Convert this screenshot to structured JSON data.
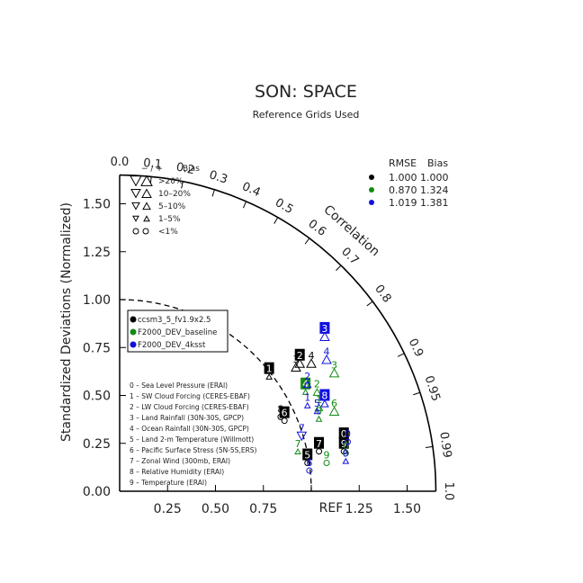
{
  "chart_data": {
    "type": "scatter",
    "title": "SON: SPACE",
    "subtitle": "Reference Grids Used",
    "ylabel": "Standardized Deviations (Normalized)",
    "correlation_label": "Correlation",
    "ref_label": "REF",
    "xlim": [
      0,
      1.65
    ],
    "ylim": [
      0,
      1.65
    ],
    "x_ticks": [
      "0.25",
      "0.50",
      "0.75",
      "1.25",
      "1.50"
    ],
    "x_tick_values": [
      0.25,
      0.5,
      0.75,
      1.25,
      1.5
    ],
    "y_ticks": [
      "0.00",
      "0.25",
      "0.50",
      "0.75",
      "1.00",
      "1.25",
      "1.50"
    ],
    "y_tick_values": [
      0,
      0.25,
      0.5,
      0.75,
      1.0,
      1.25,
      1.5
    ],
    "corr_ticks": [
      {
        "label": "0.0",
        "value": 0.0
      },
      {
        "label": "0.1",
        "value": 0.1
      },
      {
        "label": "0.2",
        "value": 0.2
      },
      {
        "label": "0.3",
        "value": 0.3
      },
      {
        "label": "0.4",
        "value": 0.4
      },
      {
        "label": "0.5",
        "value": 0.5
      },
      {
        "label": "0.6",
        "value": 0.6
      },
      {
        "label": "0.7",
        "value": 0.7
      },
      {
        "label": "0.8",
        "value": 0.8
      },
      {
        "label": "0.9",
        "value": 0.9
      },
      {
        "label": "0.95",
        "value": 0.95
      },
      {
        "label": "0.99",
        "value": 0.99
      },
      {
        "label": "1.0",
        "value": 1.0
      }
    ],
    "bias_legend": {
      "header_sign": "−  /  +",
      "header_bias": "Bias",
      "rows": [
        {
          "label": ">20%",
          "level": 4
        },
        {
          "label": "10–20%",
          "level": 3
        },
        {
          "label": "5–10%",
          "level": 2
        },
        {
          "label": "1–5%",
          "level": 1
        },
        {
          "label": "<1%",
          "level": 0
        }
      ]
    },
    "rmse_table": {
      "header_rmse": "RMSE",
      "header_bias": "Bias",
      "rows": [
        {
          "color": "#000000",
          "rmse": "1.000",
          "bias": "1.000"
        },
        {
          "color": "#138a13",
          "rmse": "0.870",
          "bias": "1.324"
        },
        {
          "color": "#1010e0",
          "rmse": "1.019",
          "bias": "1.381"
        }
      ]
    },
    "series": [
      {
        "name": "ccsm3_5_fv1.9x2.5",
        "color": "#000000"
      },
      {
        "name": "F2000_DEV_baseline",
        "color": "#138a13"
      },
      {
        "name": "F2000_DEV_4ksst",
        "color": "#1010e0"
      }
    ],
    "variables": [
      "0 – Sea Level Pressure (ERAI)",
      "1 – SW Cloud Forcing (CERES-EBAF)",
      "2 – LW Cloud Forcing (CERES-EBAF)",
      "3 – Land Rainfall (30N-30S, GPCP)",
      "4 – Ocean Rainfall (30N-30S, GPCP)",
      "5 – Land 2-m Temperature (Willmott)",
      "6 – Pacific Surface Stress (5N-5S,ERS)",
      "7 – Zonal Wind (300mb, ERAI)",
      "8 – Relative Humidity (ERAI)",
      "9 – Temperature (ERAI)"
    ],
    "points": [
      {
        "series": 0,
        "label": "1",
        "x": 0.78,
        "y": 0.64,
        "box": true,
        "marker": "up",
        "level": 1
      },
      {
        "series": 0,
        "label": "2",
        "x": 0.94,
        "y": 0.71,
        "box": true,
        "marker": "up",
        "level": 3
      },
      {
        "series": 0,
        "label": "3",
        "x": 0.92,
        "y": 0.69,
        "box": false,
        "marker": "up",
        "level": 3
      },
      {
        "series": 0,
        "label": "4",
        "x": 1.0,
        "y": 0.71,
        "box": false,
        "marker": "up",
        "level": 3
      },
      {
        "series": 0,
        "label": "8",
        "x": 0.84,
        "y": 0.43,
        "box": false,
        "marker": "circle",
        "level": 0
      },
      {
        "series": 0,
        "label": "6",
        "x": 0.86,
        "y": 0.41,
        "box": true,
        "marker": "circle",
        "level": 0
      },
      {
        "series": 0,
        "label": "5",
        "x": 0.98,
        "y": 0.19,
        "box": true,
        "marker": "circle",
        "level": 0
      },
      {
        "series": 0,
        "label": "7",
        "x": 1.04,
        "y": 0.25,
        "box": true,
        "marker": "circle",
        "level": 0
      },
      {
        "series": 0,
        "label": "0",
        "x": 1.17,
        "y": 0.3,
        "box": true,
        "marker": "circle",
        "level": 0
      },
      {
        "series": 0,
        "label": "9",
        "x": 1.17,
        "y": 0.25,
        "box": true,
        "marker": "circle",
        "level": 0
      },
      {
        "series": 1,
        "label": "4",
        "x": 0.97,
        "y": 0.56,
        "box": true,
        "marker": "up",
        "level": 1
      },
      {
        "series": 1,
        "label": "2",
        "x": 1.03,
        "y": 0.56,
        "box": false,
        "marker": "up",
        "level": 2
      },
      {
        "series": 1,
        "label": "3",
        "x": 1.12,
        "y": 0.66,
        "box": false,
        "marker": "up",
        "level": 3
      },
      {
        "series": 1,
        "label": "6",
        "x": 1.12,
        "y": 0.46,
        "box": false,
        "marker": "up",
        "level": 3
      },
      {
        "series": 1,
        "label": "1",
        "x": 1.04,
        "y": 0.48,
        "box": false,
        "marker": "up",
        "level": 2
      },
      {
        "series": 1,
        "label": "8",
        "x": 1.04,
        "y": 0.42,
        "box": false,
        "marker": "up",
        "level": 1
      },
      {
        "series": 1,
        "label": "7",
        "x": 0.93,
        "y": 0.25,
        "box": false,
        "marker": "up",
        "level": 1
      },
      {
        "series": 1,
        "label": "9",
        "x": 1.08,
        "y": 0.19,
        "box": false,
        "marker": "circle",
        "level": 0
      },
      {
        "series": 1,
        "label": "0",
        "x": 1.18,
        "y": 0.24,
        "box": false,
        "marker": "circle",
        "level": 0
      },
      {
        "series": 2,
        "label": "3",
        "x": 1.07,
        "y": 0.85,
        "box": true,
        "marker": "up",
        "level": 3
      },
      {
        "series": 2,
        "label": "4",
        "x": 1.08,
        "y": 0.73,
        "box": false,
        "marker": "up",
        "level": 3
      },
      {
        "series": 2,
        "label": "2",
        "x": 0.98,
        "y": 0.6,
        "box": false,
        "marker": "up",
        "level": 2
      },
      {
        "series": 2,
        "label": "8",
        "x": 1.07,
        "y": 0.5,
        "box": true,
        "marker": "up",
        "level": 2
      },
      {
        "series": 2,
        "label": "5",
        "x": 1.03,
        "y": 0.46,
        "box": false,
        "marker": "up",
        "level": 1
      },
      {
        "series": 2,
        "label": "1",
        "x": 0.98,
        "y": 0.49,
        "box": false,
        "marker": "up",
        "level": 1
      },
      {
        "series": 2,
        "label": "7",
        "x": 0.95,
        "y": 0.33,
        "box": false,
        "marker": "down",
        "level": 3
      },
      {
        "series": 2,
        "label": "0",
        "x": 1.19,
        "y": 0.3,
        "box": false,
        "marker": "circle",
        "level": 0
      },
      {
        "series": 2,
        "label": "9",
        "x": 1.18,
        "y": 0.2,
        "box": false,
        "marker": "up",
        "level": 1
      },
      {
        "series": 2,
        "label": "6",
        "x": 0.99,
        "y": 0.15,
        "box": false,
        "marker": "circle",
        "level": 0
      }
    ]
  }
}
